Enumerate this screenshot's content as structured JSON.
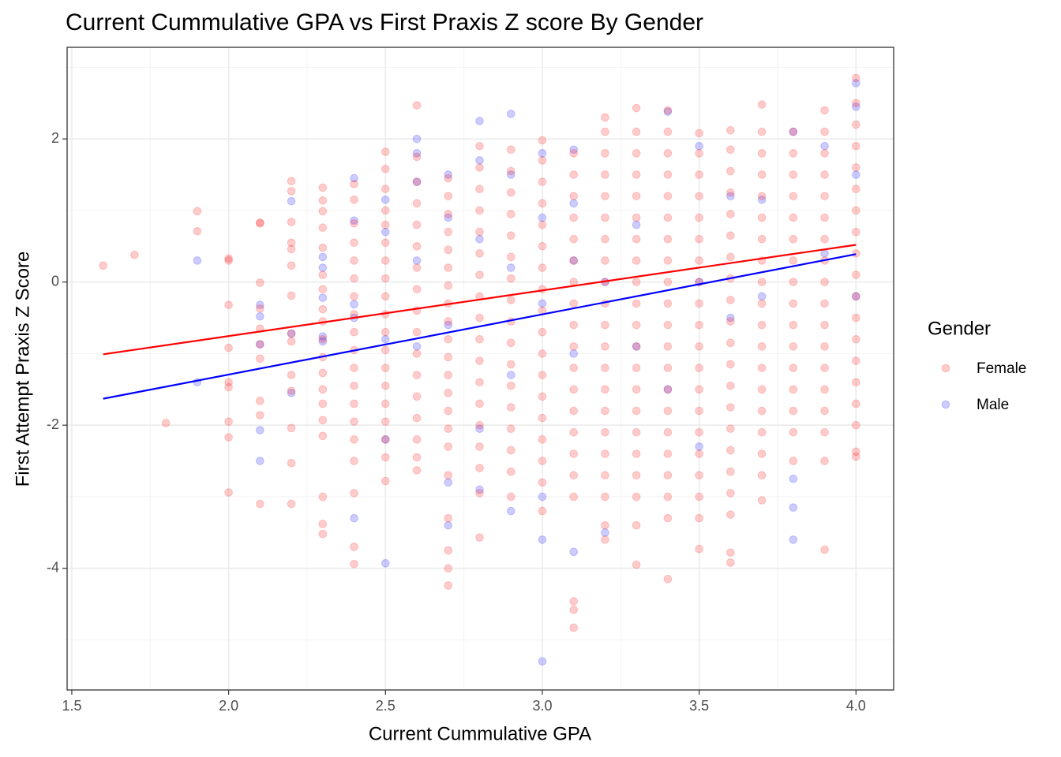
{
  "chart_data": {
    "type": "scatter",
    "title": "Current Cummulative GPA vs First Praxis Z score By Gender",
    "x_label": "Current Cummulative GPA",
    "y_label": "First Attempt Praxis Z Score",
    "legend_title": "Gender",
    "legend_position": "right",
    "grid": true,
    "xlim": [
      1.485,
      4.12
    ],
    "ylim": [
      -5.7,
      3.28
    ],
    "xticks": [
      1.5,
      {
        "value": 2,
        "label": "2.0"
      },
      2.5,
      {
        "value": 3,
        "label": "3.0"
      },
      3.5,
      {
        "value": 4,
        "label": "4.0"
      }
    ],
    "yticks": [
      -4,
      -2,
      0,
      2
    ],
    "minor_xticks": [
      1.75,
      2.25,
      2.75,
      3.25,
      3.75
    ],
    "minor_yticks": [
      -5,
      -3,
      -1,
      1,
      3
    ],
    "series": [
      {
        "name": "Female",
        "color": "#ff0000",
        "opacity": 0.2,
        "x": [
          1.6,
          1.7,
          1.8,
          1.9,
          1.9,
          2,
          2,
          2,
          2,
          2,
          2,
          2,
          2,
          2,
          2.1,
          2.1,
          2.1,
          2.1,
          2.1,
          2.1,
          2.1,
          2.1,
          2.1,
          2.1,
          2.2,
          2.2,
          2.2,
          2.2,
          2.2,
          2.2,
          2.2,
          2.2,
          2.2,
          2.2,
          2.2,
          2.2,
          2.2,
          2.2,
          2.3,
          2.3,
          2.3,
          2.3,
          2.3,
          2.3,
          2.3,
          2.3,
          2.3,
          2.3,
          2.3,
          2.3,
          2.3,
          2.3,
          2.3,
          2.3,
          2.3,
          2.3,
          2.3,
          2.4,
          2.4,
          2.4,
          2.4,
          2.4,
          2.4,
          2.4,
          2.4,
          2.4,
          2.4,
          2.4,
          2.4,
          2.4,
          2.4,
          2.4,
          2.4,
          2.4,
          2.4,
          2.4,
          2.5,
          2.5,
          2.5,
          2.5,
          2.5,
          2.5,
          2.5,
          2.5,
          2.5,
          2.5,
          2.5,
          2.5,
          2.5,
          2.5,
          2.5,
          2.5,
          2.5,
          2.5,
          2.5,
          2.6,
          2.6,
          2.6,
          2.6,
          2.6,
          2.6,
          2.6,
          2.6,
          2.6,
          2.6,
          2.6,
          2.6,
          2.6,
          2.6,
          2.6,
          2.6,
          2.6,
          2.7,
          2.7,
          2.7,
          2.7,
          2.7,
          2.7,
          2.7,
          2.7,
          2.7,
          2.7,
          2.7,
          2.7,
          2.7,
          2.7,
          2.7,
          2.7,
          2.7,
          2.7,
          2.7,
          2.7,
          2.7,
          2.8,
          2.8,
          2.8,
          2.8,
          2.8,
          2.8,
          2.8,
          2.8,
          2.8,
          2.8,
          2.8,
          2.8,
          2.8,
          2.8,
          2.8,
          2.8,
          2.8,
          2.8,
          2.9,
          2.9,
          2.9,
          2.9,
          2.9,
          2.9,
          2.9,
          2.9,
          2.9,
          2.9,
          2.9,
          2.9,
          2.9,
          2.9,
          2.9,
          2.9,
          2.9,
          3,
          3,
          3,
          3,
          3,
          3,
          3,
          3,
          3,
          3,
          3,
          3,
          3,
          3,
          3,
          3,
          3,
          3,
          3.1,
          3.1,
          3.1,
          3.1,
          3.1,
          3.1,
          3.1,
          3.1,
          3.1,
          3.1,
          3.1,
          3.1,
          3.1,
          3.1,
          3.1,
          3.1,
          3.1,
          3.1,
          3.1,
          3.1,
          3.2,
          3.2,
          3.2,
          3.2,
          3.2,
          3.2,
          3.2,
          3.2,
          3.2,
          3.2,
          3.2,
          3.2,
          3.2,
          3.2,
          3.2,
          3.2,
          3.2,
          3.2,
          3.2,
          3.2,
          3.2,
          3.3,
          3.3,
          3.3,
          3.3,
          3.3,
          3.3,
          3.3,
          3.3,
          3.3,
          3.3,
          3.3,
          3.3,
          3.3,
          3.3,
          3.3,
          3.3,
          3.3,
          3.3,
          3.3,
          3.3,
          3.3,
          3.4,
          3.4,
          3.4,
          3.4,
          3.4,
          3.4,
          3.4,
          3.4,
          3.4,
          3.4,
          3.4,
          3.4,
          3.4,
          3.4,
          3.4,
          3.4,
          3.4,
          3.4,
          3.4,
          3.4,
          3.4,
          3.5,
          3.5,
          3.5,
          3.5,
          3.5,
          3.5,
          3.5,
          3.5,
          3.5,
          3.5,
          3.5,
          3.5,
          3.5,
          3.5,
          3.5,
          3.5,
          3.5,
          3.5,
          3.5,
          3.5,
          3.6,
          3.6,
          3.6,
          3.6,
          3.6,
          3.6,
          3.6,
          3.6,
          3.6,
          3.6,
          3.6,
          3.6,
          3.6,
          3.6,
          3.6,
          3.6,
          3.6,
          3.6,
          3.6,
          3.6,
          3.6,
          3.7,
          3.7,
          3.7,
          3.7,
          3.7,
          3.7,
          3.7,
          3.7,
          3.7,
          3.7,
          3.7,
          3.7,
          3.7,
          3.7,
          3.7,
          3.7,
          3.7,
          3.7,
          3.7,
          3.8,
          3.8,
          3.8,
          3.8,
          3.8,
          3.8,
          3.8,
          3.8,
          3.8,
          3.8,
          3.8,
          3.8,
          3.8,
          3.8,
          3.8,
          3.8,
          3.9,
          3.9,
          3.9,
          3.9,
          3.9,
          3.9,
          3.9,
          3.9,
          3.9,
          3.9,
          3.9,
          3.9,
          3.9,
          3.9,
          3.9,
          3.9,
          3.9,
          3.9,
          4,
          4,
          4,
          4,
          4,
          4,
          4,
          4,
          4,
          4,
          4,
          4,
          4,
          4,
          4,
          4,
          4,
          4,
          4
        ],
        "values": [
          0.23,
          0.38,
          -1.97,
          0.99,
          0.71,
          0.33,
          0.3,
          -0.32,
          -0.92,
          -1.4,
          -1.47,
          -1.95,
          -2.17,
          -2.94,
          0.83,
          0.82,
          -0.01,
          -0.37,
          -0.65,
          -0.87,
          -1.07,
          -1.66,
          -1.86,
          -3.1,
          1.41,
          1.27,
          0.84,
          0.55,
          0.46,
          0.23,
          -0.19,
          -0.72,
          -0.83,
          -1.3,
          -1.52,
          -2.04,
          -2.53,
          -3.1,
          1.32,
          1.14,
          0.99,
          0.76,
          0.48,
          0.1,
          -0.1,
          -0.38,
          -0.55,
          -0.8,
          -1.05,
          -1.27,
          -1.5,
          -1.7,
          -1.93,
          -2.15,
          -3.0,
          -3.38,
          -3.52,
          1.37,
          1.15,
          0.82,
          0.55,
          0.3,
          0.05,
          -0.2,
          -0.45,
          -0.7,
          -0.95,
          -1.2,
          -1.45,
          -1.7,
          -1.95,
          -2.2,
          -2.5,
          -2.95,
          -3.7,
          -3.94,
          1.82,
          1.58,
          1.3,
          1.0,
          0.8,
          0.55,
          0.3,
          0.05,
          -0.2,
          -0.45,
          -0.7,
          -0.95,
          -1.2,
          -1.45,
          -1.7,
          -1.95,
          -2.2,
          -2.45,
          -2.78,
          2.47,
          1.75,
          1.4,
          1.1,
          0.8,
          0.5,
          0.2,
          -0.1,
          -0.4,
          -0.7,
          -1.0,
          -1.3,
          -1.6,
          -1.9,
          -2.2,
          -2.45,
          -2.63,
          1.45,
          1.2,
          0.95,
          0.7,
          0.45,
          0.2,
          -0.05,
          -0.3,
          -0.55,
          -0.8,
          -1.05,
          -1.3,
          -1.55,
          -1.8,
          -2.05,
          -2.3,
          -2.7,
          -3.3,
          -3.75,
          -4.0,
          -4.24,
          1.9,
          1.6,
          1.3,
          1.0,
          0.7,
          0.4,
          0.1,
          -0.2,
          -0.5,
          -0.8,
          -1.1,
          -1.4,
          -1.7,
          -2.0,
          -2.3,
          -2.6,
          -2.95,
          -3.57,
          1.85,
          1.55,
          1.25,
          0.95,
          0.65,
          0.35,
          0.05,
          -0.25,
          -0.55,
          -0.85,
          -1.15,
          -1.45,
          -1.75,
          -2.05,
          -2.35,
          -2.65,
          -3.0,
          1.98,
          1.7,
          1.4,
          1.1,
          0.8,
          0.5,
          0.2,
          -0.1,
          -0.4,
          -0.7,
          -1.0,
          -1.3,
          -1.6,
          -1.9,
          -2.2,
          -2.5,
          -2.8,
          -3.2,
          1.8,
          1.5,
          1.2,
          0.9,
          0.6,
          0.3,
          0.0,
          -0.3,
          -0.6,
          -0.9,
          -1.2,
          -1.5,
          -1.8,
          -2.1,
          -2.4,
          -2.7,
          -3.0,
          -4.46,
          -4.58,
          -4.83,
          2.3,
          2.1,
          1.8,
          1.5,
          1.2,
          0.9,
          0.6,
          0.3,
          0.0,
          -0.3,
          -0.6,
          -0.9,
          -1.2,
          -1.5,
          -1.8,
          -2.1,
          -2.4,
          -2.7,
          -3.0,
          -3.4,
          -3.6,
          2.43,
          2.1,
          1.8,
          1.5,
          1.2,
          0.9,
          0.6,
          0.3,
          0.0,
          -0.3,
          -0.6,
          -0.9,
          -1.2,
          -1.5,
          -1.8,
          -2.1,
          -2.4,
          -2.7,
          -3.0,
          -3.4,
          -3.95,
          2.4,
          2.1,
          1.8,
          1.5,
          1.2,
          0.9,
          0.6,
          0.3,
          0.0,
          -0.3,
          -0.6,
          -0.9,
          -1.2,
          -1.5,
          -1.8,
          -2.1,
          -2.4,
          -2.7,
          -3.0,
          -3.3,
          -4.15,
          2.08,
          1.8,
          1.5,
          1.2,
          0.9,
          0.6,
          0.3,
          0.0,
          -0.3,
          -0.6,
          -0.9,
          -1.2,
          -1.5,
          -1.8,
          -2.1,
          -2.4,
          -2.7,
          -3.0,
          -3.3,
          -3.73,
          2.12,
          1.85,
          1.55,
          1.25,
          0.95,
          0.65,
          0.35,
          0.05,
          -0.25,
          -0.55,
          -0.85,
          -1.15,
          -1.45,
          -1.75,
          -2.05,
          -2.35,
          -2.65,
          -2.95,
          -3.25,
          -3.78,
          -3.92,
          2.48,
          2.1,
          1.8,
          1.5,
          1.2,
          0.9,
          0.6,
          0.3,
          0.0,
          -0.3,
          -0.6,
          -0.9,
          -1.2,
          -1.5,
          -1.8,
          -2.1,
          -2.4,
          -2.7,
          -3.05,
          2.1,
          1.8,
          1.5,
          1.2,
          0.9,
          0.6,
          0.3,
          0.0,
          -0.3,
          -0.6,
          -0.9,
          -1.2,
          -1.5,
          -1.8,
          -2.1,
          -2.5,
          2.4,
          2.1,
          1.8,
          1.5,
          1.2,
          0.9,
          0.6,
          0.3,
          0.0,
          -0.3,
          -0.6,
          -0.9,
          -1.2,
          -1.5,
          -1.8,
          -2.1,
          -2.5,
          -3.74,
          2.85,
          2.5,
          2.2,
          1.9,
          1.6,
          1.3,
          1.0,
          0.7,
          0.4,
          0.1,
          -0.2,
          -0.5,
          -0.8,
          -1.1,
          -1.4,
          -1.7,
          -2.0,
          -2.37,
          -2.44
        ],
        "trend": {
          "x": [
            1.6,
            4.0
          ],
          "values": [
            -1.01,
            0.52
          ]
        }
      },
      {
        "name": "Male",
        "color": "#0000ff",
        "opacity": 0.2,
        "x": [
          1.9,
          1.9,
          2.1,
          2.1,
          2.1,
          2.1,
          2.1,
          2.2,
          2.2,
          2.2,
          2.3,
          2.3,
          2.3,
          2.3,
          2.3,
          2.4,
          2.4,
          2.4,
          2.4,
          2.4,
          2.5,
          2.5,
          2.5,
          2.5,
          2.5,
          2.6,
          2.6,
          2.6,
          2.6,
          2.6,
          2.7,
          2.7,
          2.7,
          2.7,
          2.7,
          2.8,
          2.8,
          2.8,
          2.8,
          2.8,
          2.9,
          2.9,
          2.9,
          2.9,
          2.9,
          3,
          3,
          3,
          3,
          3,
          3,
          3.1,
          3.1,
          3.1,
          3.1,
          3.1,
          3.2,
          3.2,
          3.3,
          3.3,
          3.4,
          3.4,
          3.5,
          3.5,
          3.5,
          3.6,
          3.6,
          3.7,
          3.7,
          3.8,
          3.8,
          3.8,
          3.8,
          3.9,
          3.9,
          4,
          4,
          4,
          4
        ],
        "values": [
          0.3,
          -1.4,
          -0.32,
          -0.48,
          -0.87,
          -2.07,
          -2.5,
          1.13,
          -0.72,
          -1.55,
          0.35,
          0.2,
          -0.22,
          -0.76,
          -0.83,
          1.45,
          0.86,
          -0.31,
          -0.5,
          -3.3,
          1.15,
          0.7,
          -0.8,
          -2.2,
          -3.93,
          2.0,
          1.8,
          1.4,
          0.3,
          -0.9,
          1.5,
          0.9,
          -0.6,
          -2.8,
          -3.4,
          2.25,
          1.7,
          0.6,
          -2.05,
          -2.9,
          2.35,
          1.5,
          0.2,
          -1.3,
          -3.2,
          1.8,
          0.9,
          -0.3,
          -3.0,
          -3.6,
          -5.3,
          1.85,
          1.1,
          0.3,
          -1.0,
          -3.77,
          0.0,
          -3.5,
          0.8,
          -0.9,
          2.38,
          -1.5,
          1.9,
          0.0,
          -2.3,
          1.2,
          -0.5,
          1.15,
          -0.2,
          2.1,
          -2.75,
          -3.15,
          -3.6,
          1.9,
          0.4,
          2.78,
          2.45,
          1.5,
          -0.2
        ],
        "trend": {
          "x": [
            1.6,
            4.0
          ],
          "values": [
            -1.63,
            0.39
          ]
        }
      }
    ]
  }
}
